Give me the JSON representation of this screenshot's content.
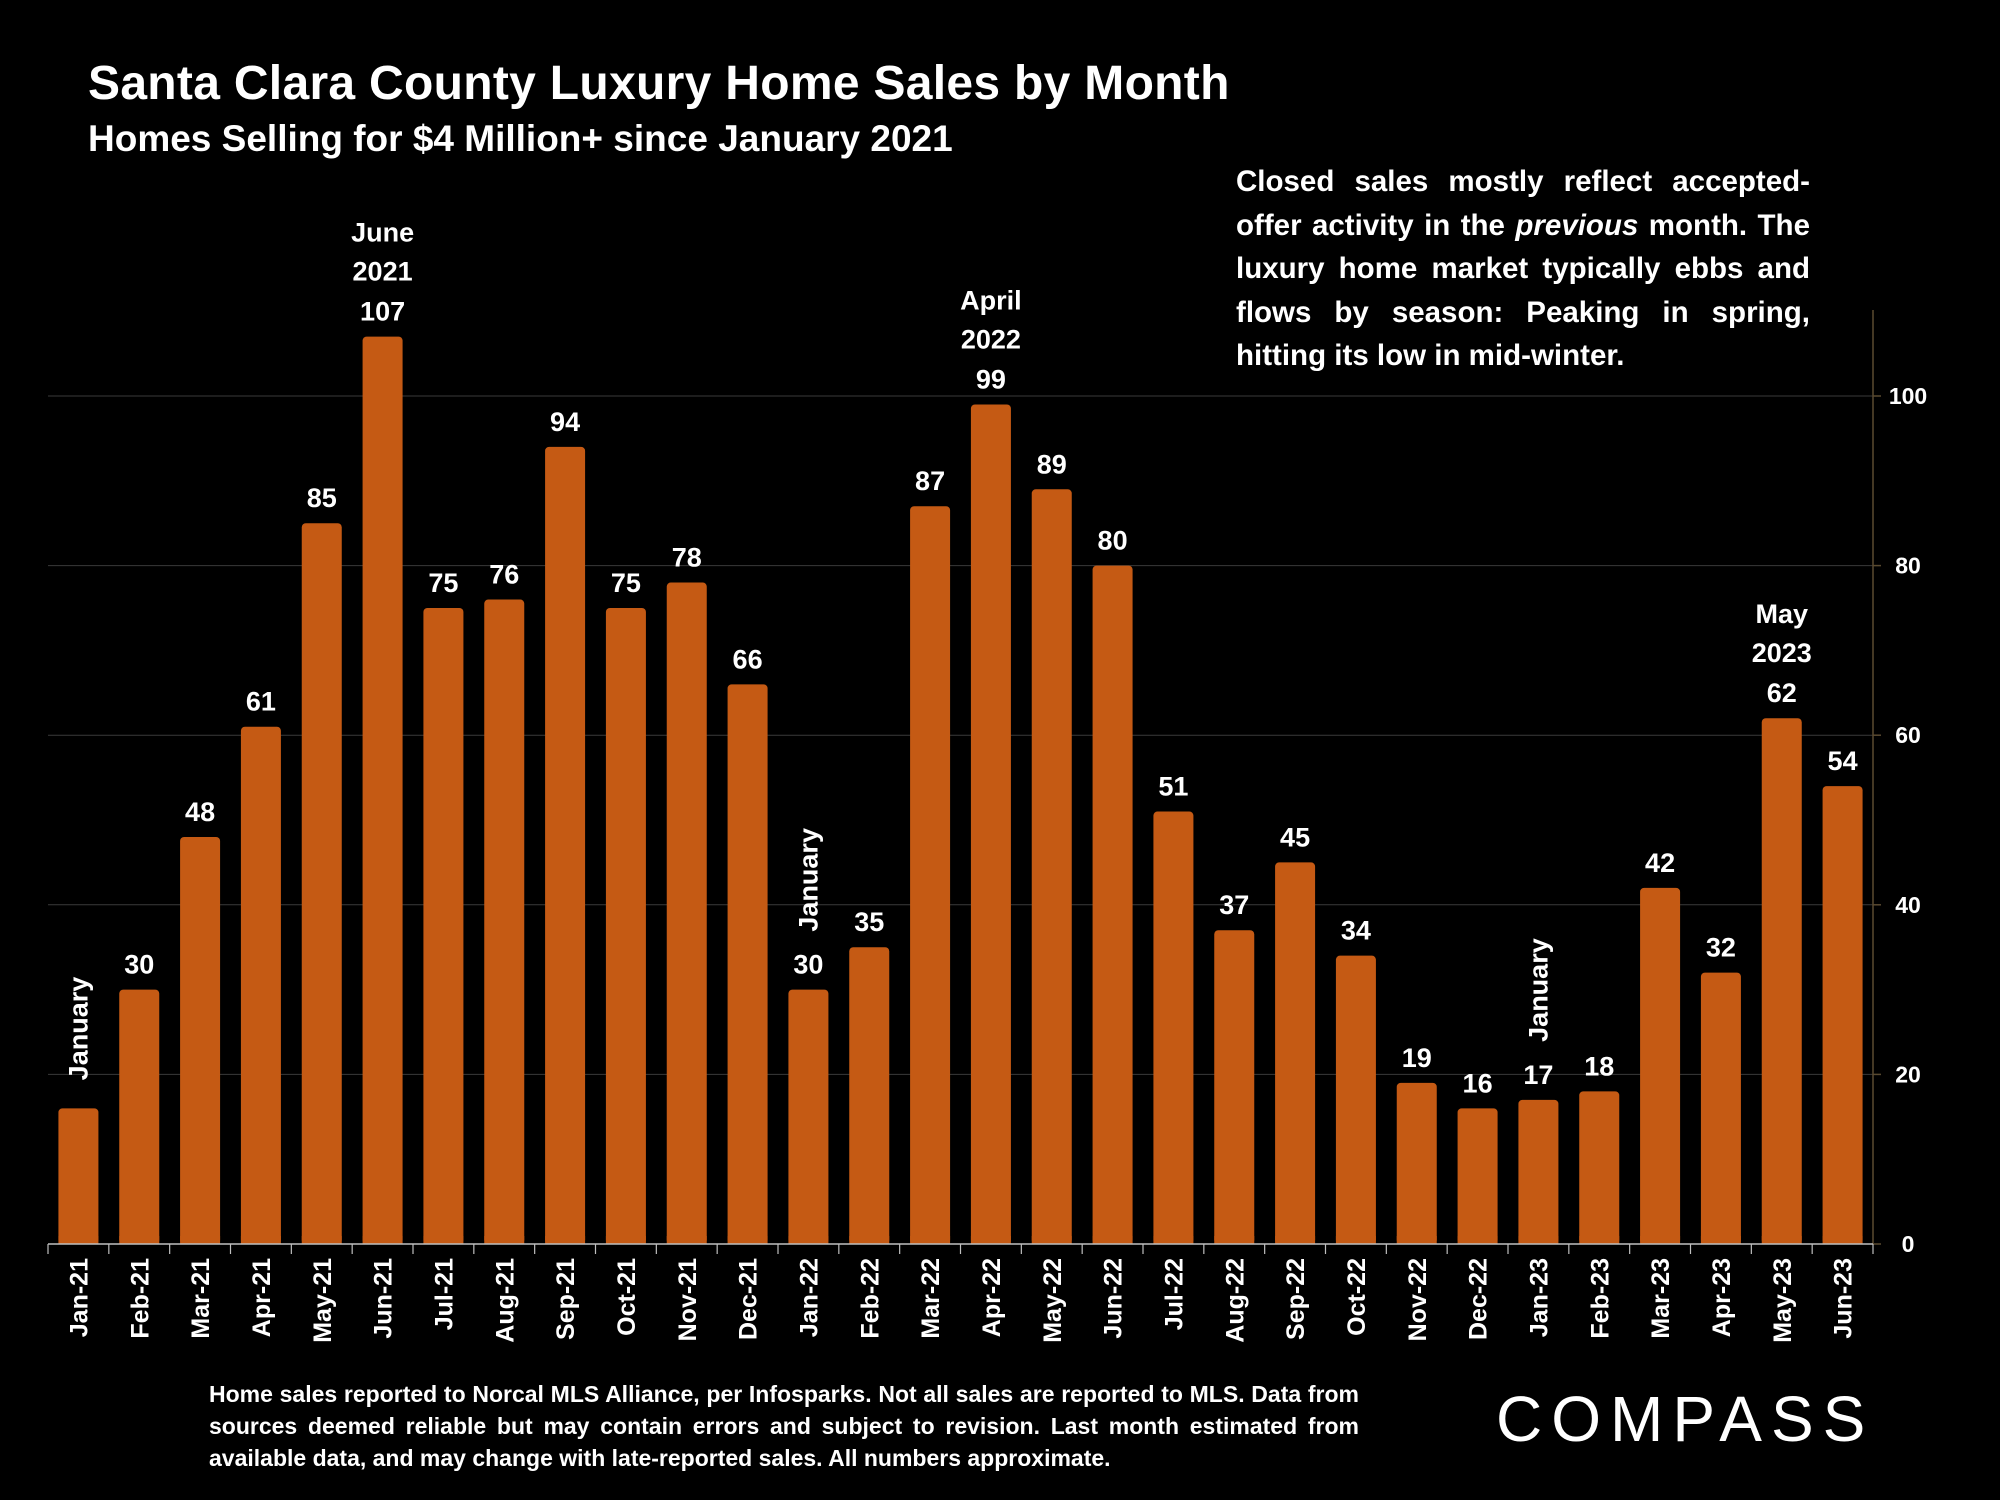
{
  "header": {
    "title": "Santa Clara County Luxury Home Sales by Month",
    "subtitle": "Homes Selling for $4 Million+ since January 2021"
  },
  "note": {
    "before": "Closed sales mostly reflect accepted-offer activity in the ",
    "emphasis": "previous",
    "after": " month. The luxury home market typically ebbs and flows by season: Peaking in spring, hitting its low in mid-winter."
  },
  "footer": {
    "text": "Home sales reported to Norcal MLS Alliance, per Infosparks. Not all sales are reported to MLS. Data from sources deemed reliable but may contain errors and subject to revision.  Last month estimated from available data, and may change with late-reported sales. All numbers approximate."
  },
  "brand": {
    "logo": "COMPASS"
  },
  "colors": {
    "bar": "#c55a14",
    "background": "#000000",
    "grid": "#3a3a3a",
    "text": "#ffffff"
  },
  "chart_data": {
    "type": "bar",
    "categories": [
      "Jan-21",
      "Feb-21",
      "Mar-21",
      "Apr-21",
      "May-21",
      "Jun-21",
      "Jul-21",
      "Aug-21",
      "Sep-21",
      "Oct-21",
      "Nov-21",
      "Dec-21",
      "Jan-22",
      "Feb-22",
      "Mar-22",
      "Apr-22",
      "May-22",
      "Jun-22",
      "Jul-22",
      "Aug-22",
      "Sep-22",
      "Oct-22",
      "Nov-22",
      "Dec-22",
      "Jan-23",
      "Feb-23",
      "Mar-23",
      "Apr-23",
      "May-23",
      "Jun-23"
    ],
    "values": [
      16,
      30,
      48,
      61,
      85,
      107,
      75,
      76,
      94,
      75,
      78,
      66,
      30,
      35,
      87,
      99,
      89,
      80,
      51,
      37,
      45,
      34,
      19,
      16,
      17,
      18,
      42,
      32,
      62,
      54
    ],
    "data_labels": [
      "",
      "30",
      "48",
      "61",
      "85",
      "107",
      "75",
      "76",
      "94",
      "75",
      "78",
      "66",
      "30",
      "35",
      "87",
      "99",
      "89",
      "80",
      "51",
      "37",
      "45",
      "34",
      "19",
      "16",
      "17",
      "18",
      "42",
      "32",
      "62",
      "54"
    ],
    "ylim": [
      0,
      110
    ],
    "yticks": [
      0,
      20,
      40,
      60,
      80,
      100
    ],
    "y_axis_side": "right",
    "grid": true,
    "annotations": [
      {
        "index": 0,
        "text": "January",
        "orientation": "vertical"
      },
      {
        "index": 12,
        "text": "January",
        "orientation": "vertical"
      },
      {
        "index": 24,
        "text": "January",
        "orientation": "vertical"
      },
      {
        "index": 5,
        "lines": [
          "June",
          "2021"
        ]
      },
      {
        "index": 15,
        "lines": [
          "April",
          "2022"
        ]
      },
      {
        "index": 28,
        "lines": [
          "May",
          "2023"
        ]
      }
    ]
  }
}
